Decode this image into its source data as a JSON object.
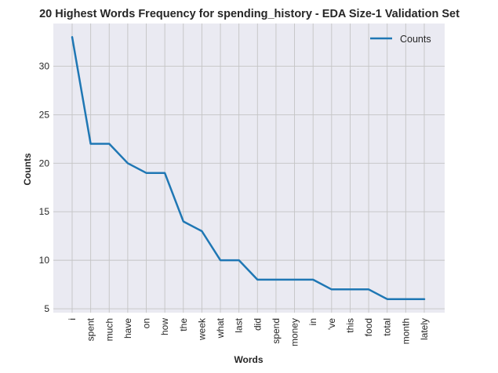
{
  "chart_data": {
    "type": "line",
    "title": "20 Highest Words Frequency for spending_history - EDA Size-1 Validation Set",
    "xlabel": "Words",
    "ylabel": "Counts",
    "categories": [
      "i",
      "spent",
      "much",
      "have",
      "on",
      "how",
      "the",
      "week",
      "what",
      "last",
      "did",
      "spend",
      "money",
      "in",
      "'ve",
      "this",
      "food",
      "total",
      "month",
      "lately"
    ],
    "series": [
      {
        "name": "Counts",
        "values": [
          33,
          22,
          22,
          20,
          19,
          19,
          14,
          13,
          10,
          10,
          8,
          8,
          8,
          8,
          7,
          7,
          7,
          6,
          6,
          6
        ]
      }
    ],
    "ylim": [
      4.6,
      34.4
    ],
    "yticks": [
      5,
      10,
      15,
      20,
      25,
      30
    ],
    "grid": true,
    "legend_position": "top-right",
    "colors": {
      "line": "#1f77b4",
      "plot_bg": "#eaeaf2",
      "grid": "#c4c4c4"
    }
  }
}
